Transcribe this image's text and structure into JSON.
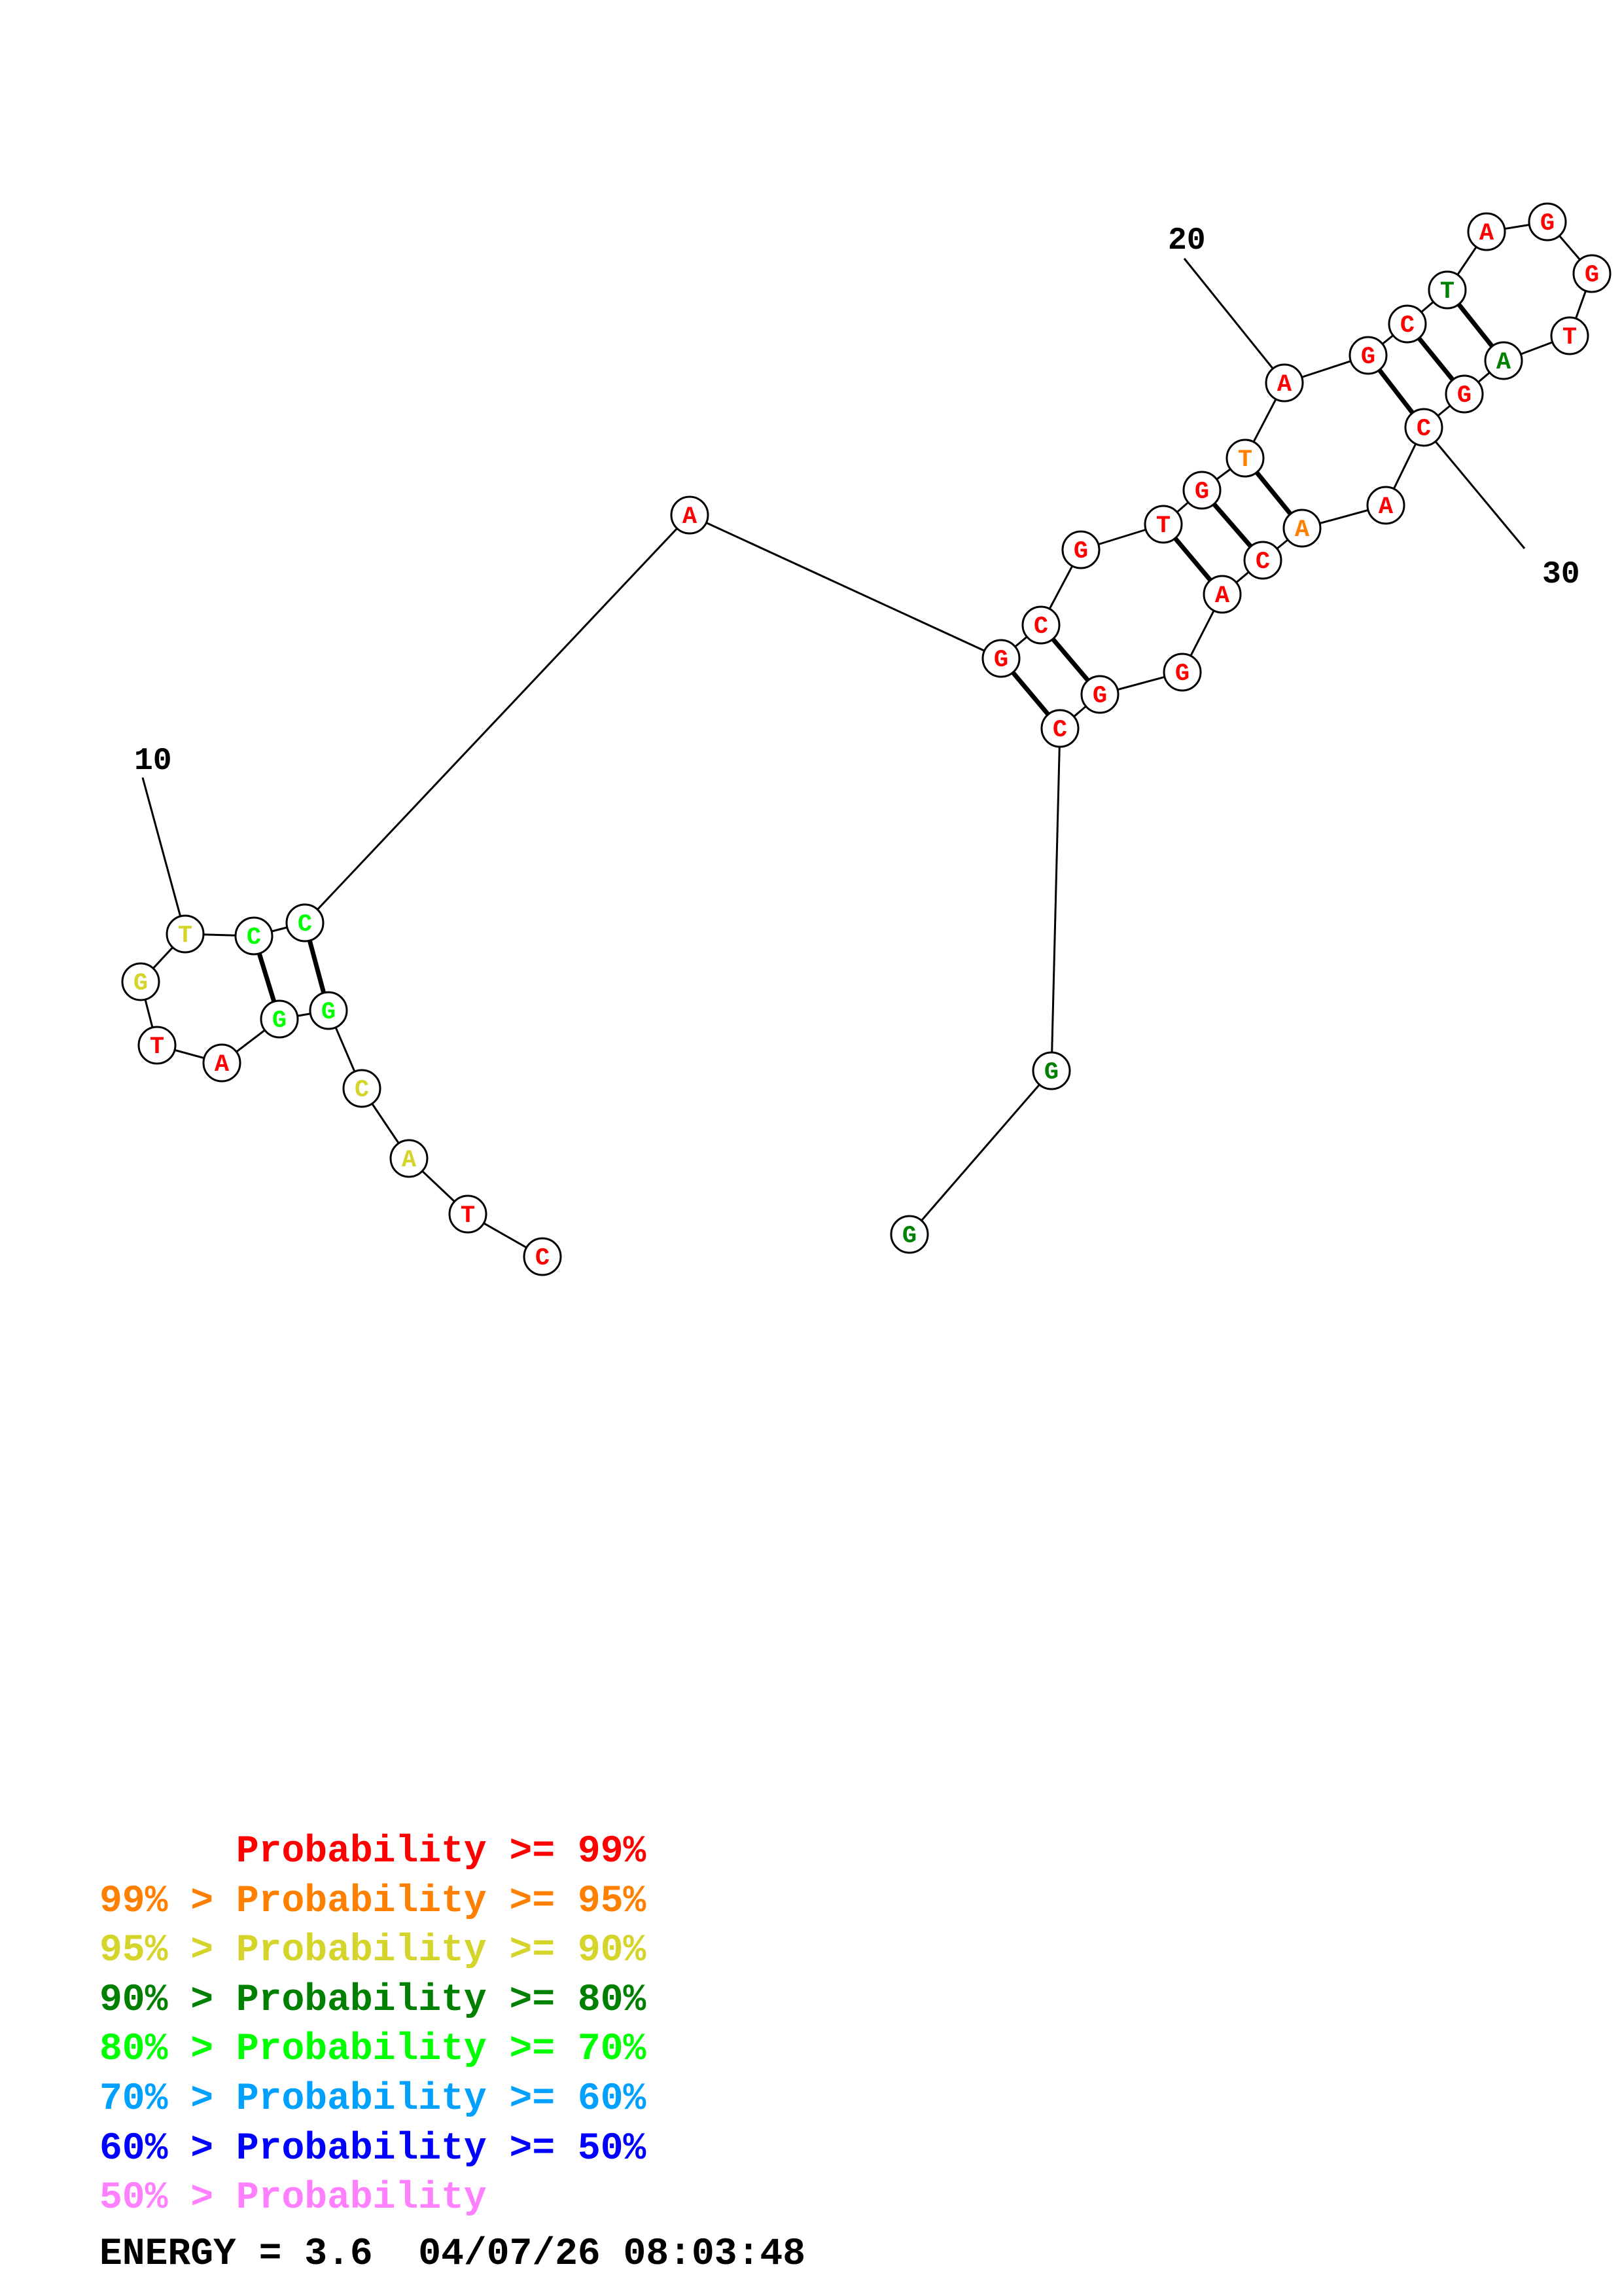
{
  "colors": {
    "p99": "#ff0000",
    "p95": "#ff8000",
    "p90": "#d4d42a",
    "p80": "#008000",
    "p70": "#00ff00",
    "p60": "#00a0ff",
    "p50": "#0000ff",
    "p0": "#ff80ff"
  },
  "structure": {
    "nucleotides": [
      {
        "n": 1,
        "base": "C",
        "tier": "p99"
      },
      {
        "n": 2,
        "base": "T",
        "tier": "p99"
      },
      {
        "n": 3,
        "base": "A",
        "tier": "p90"
      },
      {
        "n": 4,
        "base": "C",
        "tier": "p90"
      },
      {
        "n": 5,
        "base": "G",
        "tier": "p70"
      },
      {
        "n": 6,
        "base": "G",
        "tier": "p70"
      },
      {
        "n": 7,
        "base": "A",
        "tier": "p99"
      },
      {
        "n": 8,
        "base": "T",
        "tier": "p99"
      },
      {
        "n": 9,
        "base": "G",
        "tier": "p90"
      },
      {
        "n": 10,
        "base": "T",
        "tier": "p90"
      },
      {
        "n": 11,
        "base": "C",
        "tier": "p70"
      },
      {
        "n": 12,
        "base": "C",
        "tier": "p70"
      },
      {
        "n": 13,
        "base": "A",
        "tier": "p99"
      },
      {
        "n": 14,
        "base": "G",
        "tier": "p99"
      },
      {
        "n": 15,
        "base": "C",
        "tier": "p99"
      },
      {
        "n": 16,
        "base": "G",
        "tier": "p99"
      },
      {
        "n": 17,
        "base": "T",
        "tier": "p99"
      },
      {
        "n": 18,
        "base": "G",
        "tier": "p99"
      },
      {
        "n": 19,
        "base": "T",
        "tier": "p95"
      },
      {
        "n": 20,
        "base": "A",
        "tier": "p99"
      },
      {
        "n": 21,
        "base": "G",
        "tier": "p99"
      },
      {
        "n": 22,
        "base": "C",
        "tier": "p99"
      },
      {
        "n": 23,
        "base": "T",
        "tier": "p80"
      },
      {
        "n": 24,
        "base": "A",
        "tier": "p99"
      },
      {
        "n": 25,
        "base": "G",
        "tier": "p99"
      },
      {
        "n": 26,
        "base": "G",
        "tier": "p99"
      },
      {
        "n": 27,
        "base": "T",
        "tier": "p99"
      },
      {
        "n": 28,
        "base": "A",
        "tier": "p80"
      },
      {
        "n": 29,
        "base": "G",
        "tier": "p99"
      },
      {
        "n": 30,
        "base": "C",
        "tier": "p99"
      },
      {
        "n": 31,
        "base": "A",
        "tier": "p99"
      },
      {
        "n": 32,
        "base": "A",
        "tier": "p95"
      },
      {
        "n": 33,
        "base": "C",
        "tier": "p99"
      },
      {
        "n": 34,
        "base": "A",
        "tier": "p99"
      },
      {
        "n": 35,
        "base": "G",
        "tier": "p99"
      },
      {
        "n": 36,
        "base": "G",
        "tier": "p99"
      },
      {
        "n": 37,
        "base": "C",
        "tier": "p99"
      },
      {
        "n": 38,
        "base": "G",
        "tier": "p80"
      },
      {
        "n": 39,
        "base": "G",
        "tier": "p80"
      }
    ],
    "pairs": [
      [
        5,
        12
      ],
      [
        6,
        11
      ],
      [
        14,
        37
      ],
      [
        15,
        36
      ],
      [
        17,
        34
      ],
      [
        18,
        33
      ],
      [
        19,
        32
      ],
      [
        21,
        30
      ],
      [
        22,
        29
      ],
      [
        23,
        28
      ]
    ],
    "position_labels": [
      {
        "n": 10,
        "text": "10"
      },
      {
        "n": 20,
        "text": "20"
      },
      {
        "n": 30,
        "text": "30"
      }
    ]
  },
  "legend": [
    {
      "prefix": "",
      "text": "Probability >= 99%",
      "tier": "p99"
    },
    {
      "prefix": "99% > ",
      "text": "Probability >= 95%",
      "tier": "p95"
    },
    {
      "prefix": "95% > ",
      "text": "Probability >= 90%",
      "tier": "p90"
    },
    {
      "prefix": "90% > ",
      "text": "Probability >= 80%",
      "tier": "p80"
    },
    {
      "prefix": "80% > ",
      "text": "Probability >= 70%",
      "tier": "p70"
    },
    {
      "prefix": "70% > ",
      "text": "Probability >= 60%",
      "tier": "p60"
    },
    {
      "prefix": "60% > ",
      "text": "Probability >= 50%",
      "tier": "p50"
    },
    {
      "prefix": "50% > ",
      "text": "Probability",
      "tier": "p0"
    }
  ],
  "energy": {
    "label": "ENERGY = 3.6",
    "timestamp": "04/07/26 08:03:48"
  }
}
